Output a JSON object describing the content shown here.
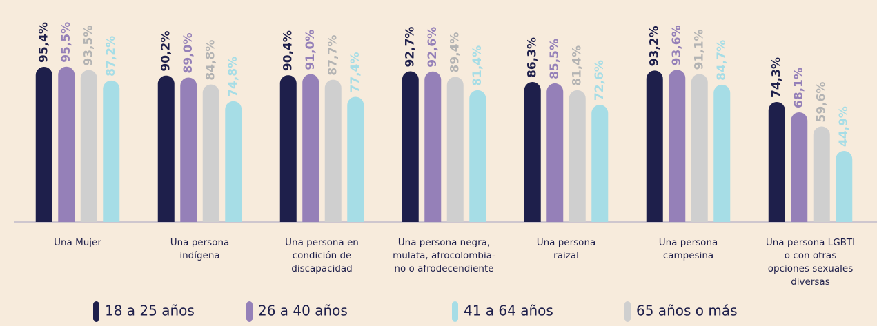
{
  "chart_data": {
    "type": "bar",
    "categories": [
      "Una Mujer",
      "Una persona\nindígena",
      "Una persona en\ncondición de\ndiscapacidad",
      "Una persona negra,\nmulata, afrocolombia-\nno o afrodecendiente",
      "Una persona\nraizal",
      "Una persona\ncampesina",
      "Una persona LGBTI\no con otras\nopciones sexuales\ndiversas"
    ],
    "ylim": [
      0,
      100
    ],
    "series": [
      {
        "name": "18 a 25 años",
        "color": "#1e1f4b",
        "values": [
          95.4,
          90.2,
          90.4,
          92.7,
          86.3,
          93.2,
          74.3
        ],
        "value_labels": [
          "95,4%",
          "90,2%",
          "90,4%",
          "92,7%",
          "86,3%",
          "93,2%",
          "74,3%"
        ]
      },
      {
        "name": "26 a 40 años",
        "color": "#9580b8",
        "values": [
          95.5,
          89.0,
          91.0,
          92.6,
          85.5,
          93.6,
          68.1
        ],
        "value_labels": [
          "95,5%",
          "89,0%",
          "91,0%",
          "92,6%",
          "85,5%",
          "93,6%",
          "68,1%"
        ]
      },
      {
        "name": "65 años o más",
        "color": "#cfcfcf",
        "values": [
          93.5,
          84.8,
          87.7,
          89.4,
          81.4,
          91.1,
          59.6
        ],
        "value_labels": [
          "93,5%",
          "84,8%",
          "87,7%",
          "89,4%",
          "81,4%",
          "91,1%",
          "59,6%"
        ]
      },
      {
        "name": "41 a 64 años",
        "color": "#a6dde6",
        "values": [
          87.2,
          74.8,
          77.4,
          81.4,
          72.6,
          84.7,
          44.9
        ],
        "value_labels": [
          "87,2%",
          "74,8%",
          "77,4%",
          "81,4%",
          "72,6%",
          "84,7%",
          "44,9%"
        ]
      }
    ]
  }
}
